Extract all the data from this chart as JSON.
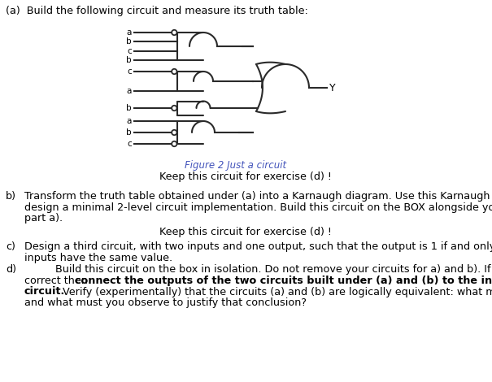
{
  "title_a": "(a)  Build the following circuit and measure its truth table:",
  "figure_caption": "Figure 2 Just a circuit",
  "keep_text1": "Keep this circuit for exercise (d) !",
  "label_b": "b)",
  "text_b1": "Transform the truth table obtained under (a) into a Karnaugh diagram. Use this Karnaugh diagram to",
  "text_b2": "design a minimal 2-level circuit implementation. Build this circuit on the BOX alongside your circuit for",
  "text_b3": "part a).",
  "keep_text2": "Keep this circuit for exercise (d) !",
  "label_c": "c)",
  "text_c1": "Design a third circuit, with two inputs and one output, such that the output is 1 if and only if both",
  "text_c2": "inputs have the same value.",
  "label_d": "d)",
  "text_d_indent": "Build this circuit on the box in isolation. Do not remove your circuits for a) and b). If it is",
  "text_d2a": "correct then ",
  "text_d2b": "connect the outputs of the two circuits built under (a) and (b) to the inputs of the third",
  "text_d3a": "circuit.",
  "text_d3b": " Verify (experimentally) that the circuits (a) and (b) are logically equivalent: what must you do",
  "text_d4": "and what must you observe to justify that conclusion?",
  "bg_color": "#ffffff",
  "text_color": "#000000",
  "circuit_color": "#2a2a2a",
  "caption_color": "#4455bb",
  "Y_label": "Y",
  "gate1_inputs": [
    "a",
    "b",
    "c",
    "b"
  ],
  "gate1_notted": [
    true,
    false,
    false,
    false
  ],
  "gate2_inputs": [
    "c",
    "a"
  ],
  "gate2_notted": [
    true,
    false
  ],
  "gate3_inputs": [
    "b"
  ],
  "gate3_notted": [
    true
  ],
  "gate4_inputs": [
    "a",
    "b",
    "c"
  ],
  "gate4_notted": [
    false,
    true,
    true
  ]
}
